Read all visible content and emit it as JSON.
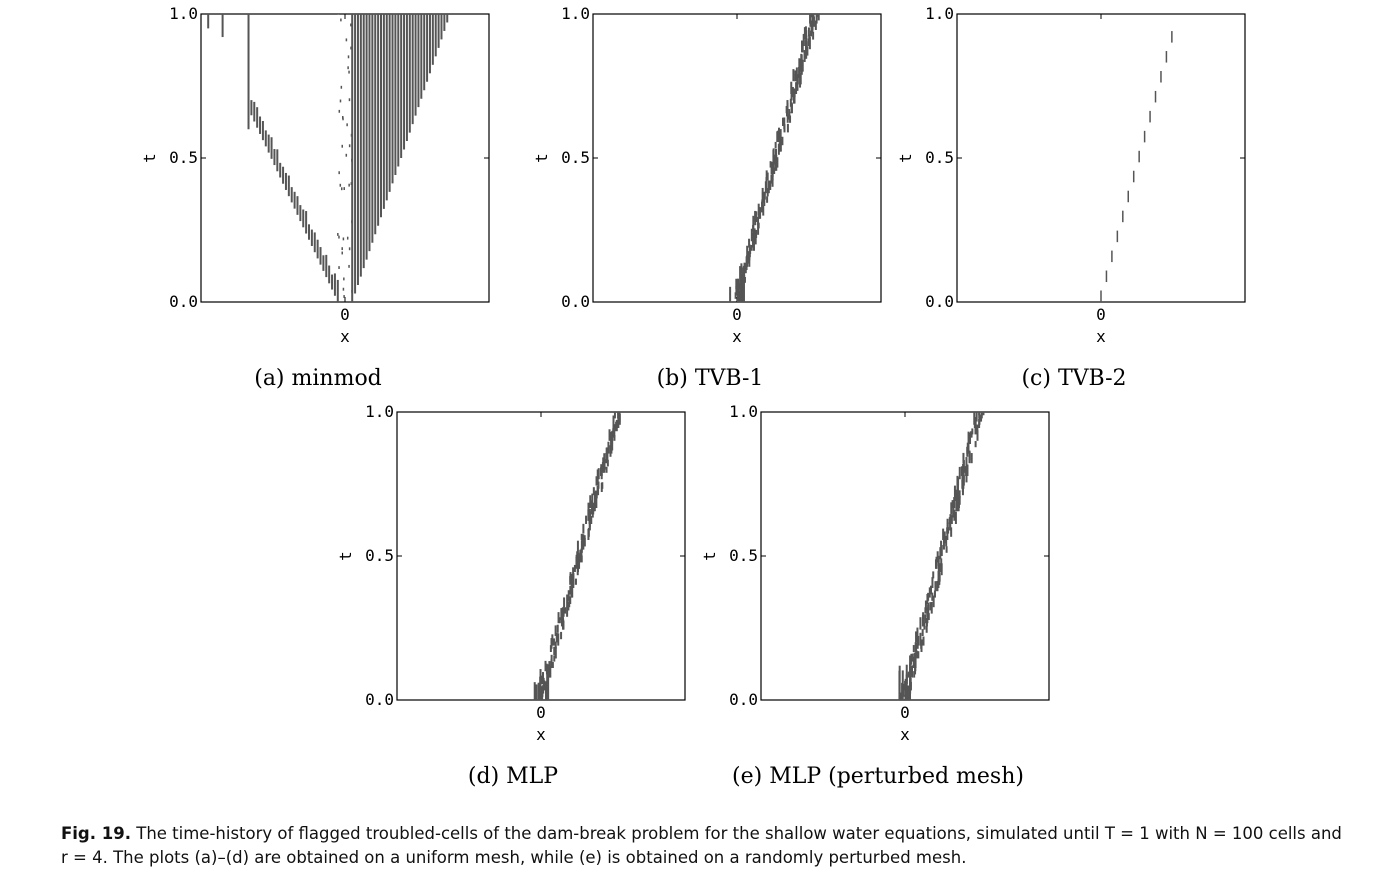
{
  "caption": {
    "label": "Fig. 19.",
    "line1": "The time-history of flagged troubled-cells of the dam-break problem for the shallow water equations, simulated until T = 1 with N = 100 cells and",
    "line2": "r = 4. The plots (a)–(d) are obtained on a uniform mesh, while (e) is obtained on a randomly perturbed mesh."
  },
  "colors": {
    "marks": "#555555",
    "axes": "#000000"
  },
  "chart_data": [
    {
      "type": "scatter",
      "caption": "(a) minmod",
      "xlabel": "x",
      "ylabel": "t",
      "xticks": [
        "0"
      ],
      "yticks": [
        "0.0",
        "0.5",
        "1.0"
      ],
      "xlim": [
        -1,
        1
      ],
      "ylim": [
        0,
        1
      ],
      "description_of_series": "flagged cells",
      "series": [
        {
          "kind": "left-shock",
          "t": [
            0.0,
            0.67
          ],
          "x": [
            -0.05,
            -0.67
          ]
        },
        {
          "kind": "right-fan",
          "t": [
            0.0,
            1.0
          ],
          "x": [
            0.05,
            0.73
          ]
        },
        {
          "kind": "center-strip",
          "t": [
            0.0,
            1.0
          ],
          "x": [
            -0.05,
            0.05
          ]
        },
        {
          "kind": "isolated",
          "points": [
            [
              -0.95,
              0.95
            ],
            [
              -0.85,
              0.92
            ],
            [
              -0.67,
              0.6
            ]
          ]
        }
      ]
    },
    {
      "type": "scatter",
      "caption": "(b) TVB-1",
      "xlabel": "x",
      "ylabel": "t",
      "xticks": [
        "0"
      ],
      "yticks": [
        "0.0",
        "0.5",
        "1.0"
      ],
      "xlim": [
        -1,
        1
      ],
      "ylim": [
        0,
        1
      ],
      "series": [
        {
          "kind": "shock-band",
          "t": [
            0.0,
            1.0
          ],
          "x": [
            0.0,
            0.55
          ],
          "width": 0.06
        }
      ]
    },
    {
      "type": "scatter",
      "caption": "(c) TVB-2",
      "xlabel": "x",
      "ylabel": "t",
      "xticks": [
        "0"
      ],
      "yticks": [
        "0.0",
        "0.5",
        "1.0"
      ],
      "xlim": [
        -1,
        1
      ],
      "ylim": [
        0,
        1
      ],
      "series": [
        {
          "kind": "shock-sparse",
          "t": [
            0.0,
            0.97
          ],
          "x": [
            0.0,
            0.53
          ]
        }
      ]
    },
    {
      "type": "scatter",
      "caption": "(d) MLP",
      "xlabel": "x",
      "ylabel": "t",
      "xticks": [
        "0"
      ],
      "yticks": [
        "0.0",
        "0.5",
        "1.0"
      ],
      "xlim": [
        -1,
        1
      ],
      "ylim": [
        0,
        1
      ],
      "series": [
        {
          "kind": "shock-band",
          "t": [
            0.0,
            1.0
          ],
          "x": [
            0.0,
            0.55
          ],
          "width": 0.05
        }
      ]
    },
    {
      "type": "scatter",
      "caption": "(e) MLP (perturbed mesh)",
      "xlabel": "x",
      "ylabel": "t",
      "xticks": [
        "0"
      ],
      "yticks": [
        "0.0",
        "0.5",
        "1.0"
      ],
      "xlim": [
        -1,
        1
      ],
      "ylim": [
        0,
        1
      ],
      "series": [
        {
          "kind": "shock-band",
          "t": [
            0.0,
            1.0
          ],
          "x": [
            0.0,
            0.53
          ],
          "width": 0.06
        }
      ]
    }
  ]
}
